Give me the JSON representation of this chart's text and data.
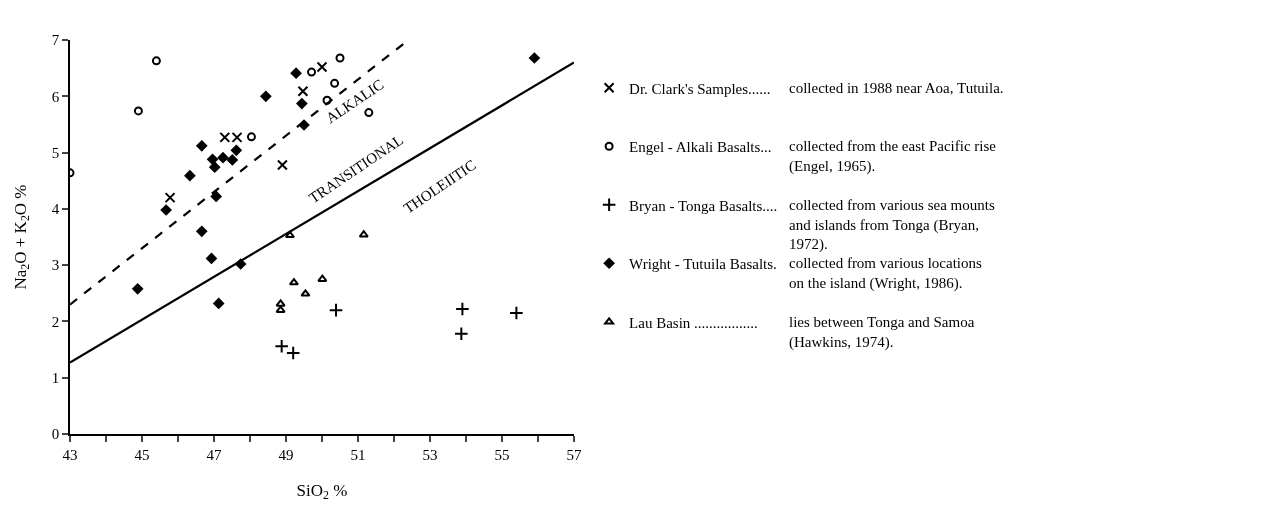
{
  "chart_data": {
    "type": "scatter",
    "xlabel": "SiO$_{2}$ %",
    "ylabel": "Na$_{2}$O + K$_{2}$O %",
    "xlim": [
      43,
      57
    ],
    "ylim": [
      0,
      7
    ],
    "xticks": [
      43,
      {
        "value": 44,
        "label": null
      },
      45,
      {
        "value": 46,
        "label": null
      },
      47,
      {
        "value": 48,
        "label": null
      },
      49,
      {
        "value": 50,
        "label": null
      },
      51,
      {
        "value": 52,
        "label": null
      },
      53,
      {
        "value": 54,
        "label": null
      },
      55,
      {
        "value": 56,
        "label": null
      },
      57
    ],
    "yticks": [
      0,
      1,
      2,
      3,
      4,
      5,
      6,
      7
    ],
    "grid": false,
    "legend": "right",
    "series": [
      {
        "name": "Dr. Clark's Samples......",
        "color": "#000000",
        "marker": "x",
        "x": [
          45.78,
          47.3,
          47.64,
          48.9,
          49.47,
          50.0
        ],
        "values": [
          4.2,
          5.27,
          5.27,
          4.78,
          6.09,
          6.52
        ]
      },
      {
        "name": "Engel - Alkali Basalts...",
        "color": "#000000",
        "marker": "circle-open",
        "x": [
          43.0,
          44.9,
          45.4,
          48.04,
          49.71,
          50.14,
          50.35,
          50.5,
          51.3
        ],
        "values": [
          4.64,
          5.74,
          6.63,
          5.28,
          6.43,
          5.93,
          6.23,
          6.68,
          5.71
        ]
      },
      {
        "name": "Bryan - Tonga Basalts....",
        "color": "#000000",
        "marker": "cross",
        "x": [
          48.88,
          49.2,
          50.39,
          53.9,
          53.87,
          55.4
        ],
        "values": [
          1.56,
          1.44,
          2.2,
          2.22,
          1.78,
          2.15
        ]
      },
      {
        "name": "Wright - Tutuila Basalts.",
        "color": "#000000",
        "marker": "diamond",
        "x": [
          44.88,
          45.67,
          46.33,
          46.66,
          46.66,
          46.93,
          46.96,
          47.02,
          47.06,
          47.13,
          47.25,
          47.51,
          47.62,
          47.74,
          48.44,
          49.28,
          49.44,
          49.5,
          55.9
        ],
        "values": [
          2.58,
          3.98,
          4.59,
          5.12,
          3.6,
          3.12,
          4.88,
          4.74,
          4.22,
          2.32,
          4.91,
          4.87,
          5.04,
          3.02,
          6.0,
          6.41,
          5.87,
          5.49,
          6.68
        ]
      },
      {
        "name": "Lau Basin .................",
        "color": "#000000",
        "marker": "triangle-open",
        "x": [
          48.85,
          48.85,
          49.11,
          49.22,
          49.54,
          50.01,
          51.16
        ],
        "values": [
          2.31,
          2.2,
          3.53,
          2.69,
          2.49,
          2.75,
          3.54
        ]
      },
      {
        "type": "line",
        "color": "#000000",
        "line_style": "dashed",
        "x": [
          43,
          52.4
        ],
        "values": [
          2.3,
          7.0
        ]
      },
      {
        "type": "line",
        "color": "#000000",
        "line_style": "solid",
        "x": [
          43,
          57
        ],
        "values": [
          1.27,
          6.6
        ]
      }
    ],
    "annotations": [
      "ALKALIC",
      "TRANSITIONAL",
      "THOLEIITIC",
      "collected in 1988 near Aoa, Tutuila.",
      "collected from the east Pacific rise\n(Engel, 1965).",
      "collected from various sea mounts\nand islands from Tonga (Bryan,\n1972).",
      "collected from various locations\non the island (Wright, 1986).",
      "lies between Tonga and Samoa\n(Hawkins, 1974)."
    ]
  }
}
